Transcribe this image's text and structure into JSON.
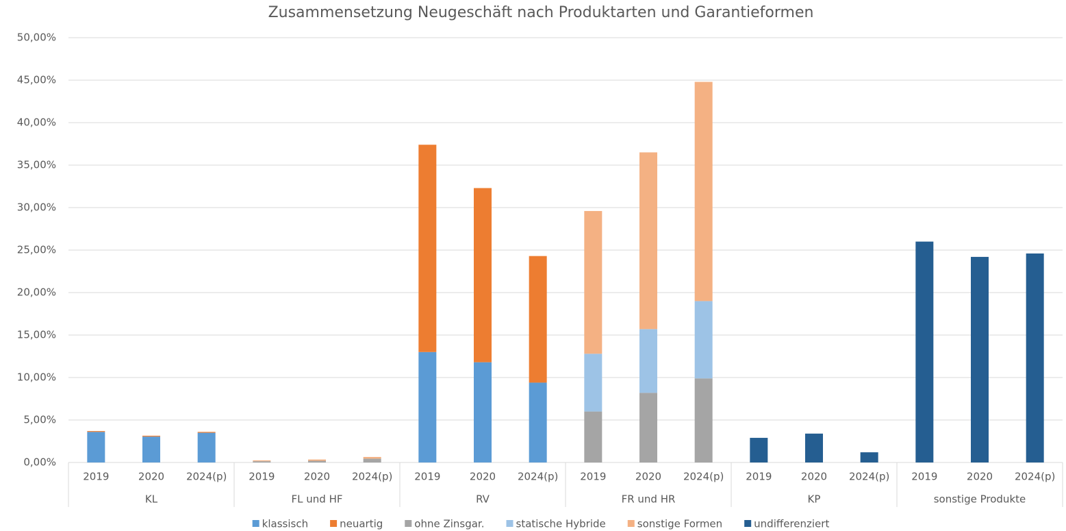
{
  "chart_data": {
    "type": "stacked_bar",
    "title": "Zusammensetzung Neugeschäft nach Produktarten und Garantieformen",
    "categories": [
      "2019",
      "2020",
      "2024(p)",
      "2019",
      "2020",
      "2024(p)",
      "2019",
      "2020",
      "2024(p)",
      "2019",
      "2020",
      "2024(p)",
      "2019",
      "2020",
      "2024(p)",
      "2019",
      "2020",
      "2024(p)"
    ],
    "groups": [
      "KL",
      "FL und HF",
      "RV",
      "FR und HR",
      "KP",
      "sonstige Produkte"
    ],
    "series": [
      {
        "name": "klassisch",
        "color": "#5b9bd5",
        "values": [
          3.6,
          3.05,
          3.5,
          null,
          null,
          null,
          13.0,
          11.8,
          9.4,
          null,
          null,
          null,
          null,
          null,
          null,
          null,
          null,
          null
        ]
      },
      {
        "name": "neuartig",
        "color": "#ed7d31",
        "values": [
          0.1,
          0.1,
          0.1,
          null,
          null,
          null,
          24.4,
          20.5,
          14.9,
          null,
          null,
          null,
          null,
          null,
          null,
          null,
          null,
          null
        ]
      },
      {
        "name": "ohne Zinsgar.",
        "color": "#a5a5a5",
        "values": [
          null,
          null,
          null,
          0.15,
          0.2,
          0.45,
          null,
          null,
          null,
          6.0,
          8.2,
          9.9,
          null,
          null,
          null,
          null,
          null,
          null
        ]
      },
      {
        "name": "statische Hybride",
        "color": "#9dc3e6",
        "values": [
          null,
          null,
          null,
          null,
          null,
          null,
          null,
          null,
          null,
          6.8,
          7.5,
          9.1,
          null,
          null,
          null,
          null,
          null,
          null
        ]
      },
      {
        "name": "sonstige Formen",
        "color": "#f4b183",
        "values": [
          null,
          null,
          null,
          0.1,
          0.15,
          0.2,
          null,
          null,
          null,
          16.8,
          20.8,
          25.8,
          null,
          null,
          null,
          null,
          null,
          null
        ]
      },
      {
        "name": "undifferenziert",
        "color": "#255e91",
        "values": [
          null,
          null,
          null,
          null,
          null,
          null,
          null,
          null,
          null,
          null,
          null,
          null,
          2.9,
          3.4,
          1.2,
          26.0,
          24.2,
          24.6
        ]
      }
    ],
    "ylim": [
      0,
      50
    ],
    "yticks": [
      {
        "value": 0,
        "label": "0,00%"
      },
      {
        "value": 5,
        "label": "5,00%"
      },
      {
        "value": 10,
        "label": "10,00%"
      },
      {
        "value": 15,
        "label": "15,00%"
      },
      {
        "value": 20,
        "label": "20,00%"
      },
      {
        "value": 25,
        "label": "25,00%"
      },
      {
        "value": 30,
        "label": "30,00%"
      },
      {
        "value": 35,
        "label": "35,00%"
      },
      {
        "value": 40,
        "label": "40,00%"
      },
      {
        "value": 45,
        "label": "45,00%"
      },
      {
        "value": 50,
        "label": "50,00%"
      }
    ],
    "grid": true,
    "legend": "bottom"
  }
}
